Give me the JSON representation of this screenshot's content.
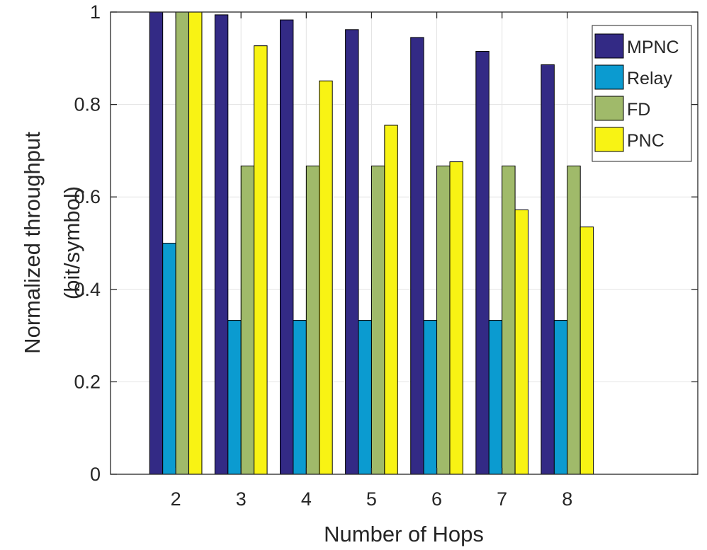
{
  "chart_data": {
    "type": "bar",
    "title": "",
    "xlabel": "Number of Hops",
    "ylabel_lines": [
      "Normalized throughput",
      "(bit/symbol)"
    ],
    "categories": [
      "2",
      "3",
      "4",
      "5",
      "6",
      "7",
      "8"
    ],
    "xlim": [
      1,
      10
    ],
    "ylim": [
      0,
      1
    ],
    "yticks": [
      "0",
      "0.2",
      "0.4",
      "0.6",
      "0.8",
      "1"
    ],
    "grid": true,
    "legend_position": "top-right",
    "series": [
      {
        "name": "MPNC",
        "color": "#332a85",
        "values": [
          1.0,
          0.994,
          0.983,
          0.962,
          0.945,
          0.915,
          0.886
        ]
      },
      {
        "name": "Relay",
        "color": "#0b9bd0",
        "values": [
          0.5,
          0.333,
          0.333,
          0.333,
          0.333,
          0.333,
          0.333
        ]
      },
      {
        "name": "FD",
        "color": "#a0ba6a",
        "values": [
          1.0,
          0.667,
          0.667,
          0.667,
          0.667,
          0.667,
          0.667
        ]
      },
      {
        "name": "PNC",
        "color": "#f8f314",
        "values": [
          1.0,
          0.927,
          0.851,
          0.755,
          0.676,
          0.572,
          0.535
        ]
      }
    ]
  }
}
